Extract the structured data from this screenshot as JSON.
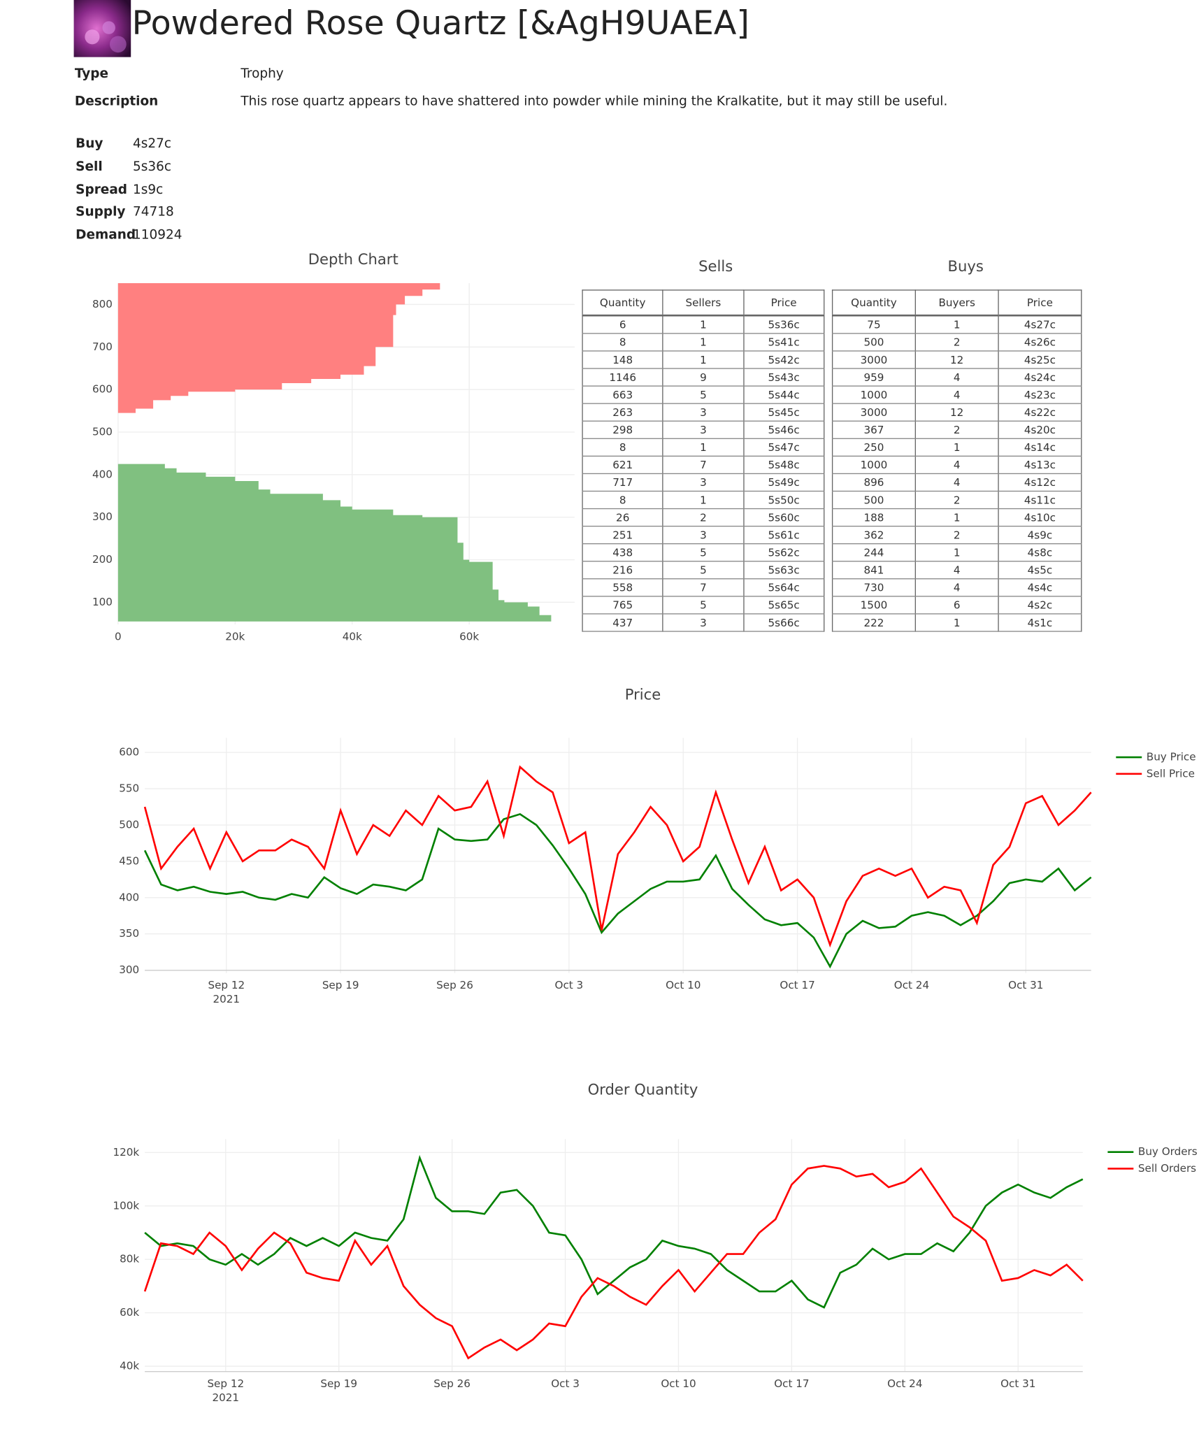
{
  "header": {
    "title": "Powdered Rose Quartz [&AgH9UAEA]"
  },
  "details": [
    {
      "label": "Type",
      "value": "Trophy"
    },
    {
      "label": "Description",
      "value": "This rose quartz appears to have shattered into powder while mining the Kralkatite, but it may still be useful."
    }
  ],
  "stats": [
    {
      "label": "Buy",
      "value": "4s27c"
    },
    {
      "label": "Sell",
      "value": "5s36c"
    },
    {
      "label": "Spread",
      "value": "1s9c"
    },
    {
      "label": "Supply",
      "value": 74718
    },
    {
      "label": "Demand",
      "value": 110924
    }
  ],
  "sells_table": {
    "title": "Sells",
    "columns": [
      "Quantity",
      "Sellers",
      "Price"
    ],
    "rows": [
      [
        6,
        1,
        "5s36c"
      ],
      [
        8,
        1,
        "5s41c"
      ],
      [
        148,
        1,
        "5s42c"
      ],
      [
        1146,
        9,
        "5s43c"
      ],
      [
        663,
        5,
        "5s44c"
      ],
      [
        263,
        3,
        "5s45c"
      ],
      [
        298,
        3,
        "5s46c"
      ],
      [
        8,
        1,
        "5s47c"
      ],
      [
        621,
        7,
        "5s48c"
      ],
      [
        717,
        3,
        "5s49c"
      ],
      [
        8,
        1,
        "5s50c"
      ],
      [
        26,
        2,
        "5s60c"
      ],
      [
        251,
        3,
        "5s61c"
      ],
      [
        438,
        5,
        "5s62c"
      ],
      [
        216,
        5,
        "5s63c"
      ],
      [
        558,
        7,
        "5s64c"
      ],
      [
        765,
        5,
        "5s65c"
      ],
      [
        437,
        3,
        "5s66c"
      ]
    ]
  },
  "buys_table": {
    "title": "Buys",
    "columns": [
      "Quantity",
      "Buyers",
      "Price"
    ],
    "rows": [
      [
        75,
        1,
        "4s27c"
      ],
      [
        500,
        2,
        "4s26c"
      ],
      [
        3000,
        12,
        "4s25c"
      ],
      [
        959,
        4,
        "4s24c"
      ],
      [
        1000,
        4,
        "4s23c"
      ],
      [
        3000,
        12,
        "4s22c"
      ],
      [
        367,
        2,
        "4s20c"
      ],
      [
        250,
        1,
        "4s14c"
      ],
      [
        1000,
        4,
        "4s13c"
      ],
      [
        896,
        4,
        "4s12c"
      ],
      [
        500,
        2,
        "4s11c"
      ],
      [
        188,
        1,
        "4s10c"
      ],
      [
        362,
        2,
        "4s9c"
      ],
      [
        244,
        1,
        "4s8c"
      ],
      [
        841,
        4,
        "4s5c"
      ],
      [
        730,
        4,
        "4s4c"
      ],
      [
        1500,
        6,
        "4s2c"
      ],
      [
        222,
        1,
        "4s1c"
      ]
    ]
  },
  "chart_data": [
    {
      "type": "depth",
      "title": "Depth Chart",
      "xlim": [
        0,
        78000
      ],
      "ylim": [
        48,
        850
      ],
      "xticks": [
        0,
        {
          "value": 20000,
          "label": "20k"
        },
        {
          "value": 40000,
          "label": "40k"
        },
        {
          "value": 60000,
          "label": "60k"
        }
      ],
      "yticks": [
        100,
        200,
        300,
        400,
        500,
        600,
        700,
        800
      ],
      "grid": true,
      "series": [
        {
          "name": "Sells",
          "color": "#ff8080",
          "x": [
            0,
            3000,
            6000,
            9000,
            12000,
            20000,
            28000,
            33000,
            38000,
            42000,
            44000,
            47000,
            47500,
            49000,
            52000,
            55000,
            56500
          ],
          "values": [
            536,
            545,
            555,
            575,
            585,
            595,
            600,
            615,
            625,
            635,
            655,
            700,
            775,
            800,
            820,
            835,
            850
          ]
        },
        {
          "name": "Buys",
          "color": "#80c080",
          "x": [
            0,
            8000,
            10000,
            15000,
            20000,
            24000,
            26000,
            35000,
            38000,
            40000,
            47000,
            52000,
            58000,
            59000,
            60000,
            64000,
            65000,
            66000,
            70000,
            72000,
            74000,
            78000
          ],
          "values": [
            427,
            425,
            415,
            405,
            395,
            385,
            365,
            355,
            340,
            325,
            318,
            305,
            300,
            240,
            200,
            195,
            130,
            105,
            100,
            90,
            70,
            55
          ]
        }
      ]
    },
    {
      "type": "line",
      "title": "Price",
      "xlim": [
        "2021-09-07",
        "2021-11-04"
      ],
      "ylim": [
        296,
        620
      ],
      "yticks": [
        300,
        350,
        400,
        450,
        500,
        550,
        600
      ],
      "xticks": [
        {
          "value": "2021-09-12",
          "label": "Sep 12"
        },
        {
          "value": "2021-09-19",
          "label": "Sep 19"
        },
        {
          "value": "2021-09-26",
          "label": "Sep 26"
        },
        {
          "value": "2021-10-03",
          "label": "Oct 3"
        },
        {
          "value": "2021-10-10",
          "label": "Oct 10"
        },
        {
          "value": "2021-10-17",
          "label": "Oct 17"
        },
        {
          "value": "2021-10-24",
          "label": "Oct 24"
        },
        {
          "value": "2021-10-31",
          "label": "Oct 31"
        }
      ],
      "year_label": "2021",
      "grid": true,
      "legend": "top-right",
      "x": [
        "2021-09-07",
        "2021-09-08",
        "2021-09-09",
        "2021-09-10",
        "2021-09-11",
        "2021-09-12",
        "2021-09-13",
        "2021-09-14",
        "2021-09-15",
        "2021-09-16",
        "2021-09-17",
        "2021-09-18",
        "2021-09-19",
        "2021-09-20",
        "2021-09-21",
        "2021-09-22",
        "2021-09-23",
        "2021-09-24",
        "2021-09-25",
        "2021-09-26",
        "2021-09-27",
        "2021-09-28",
        "2021-09-29",
        "2021-09-30",
        "2021-10-01",
        "2021-10-02",
        "2021-10-03",
        "2021-10-04",
        "2021-10-05",
        "2021-10-06",
        "2021-10-07",
        "2021-10-08",
        "2021-10-09",
        "2021-10-10",
        "2021-10-11",
        "2021-10-12",
        "2021-10-13",
        "2021-10-14",
        "2021-10-15",
        "2021-10-16",
        "2021-10-17",
        "2021-10-18",
        "2021-10-19",
        "2021-10-20",
        "2021-10-21",
        "2021-10-22",
        "2021-10-23",
        "2021-10-24",
        "2021-10-25",
        "2021-10-26",
        "2021-10-27",
        "2021-10-28",
        "2021-10-29",
        "2021-10-30",
        "2021-10-31",
        "2021-11-01",
        "2021-11-02",
        "2021-11-03",
        "2021-11-04"
      ],
      "series": [
        {
          "name": "Buy Price",
          "color": "#008000",
          "values": [
            465,
            418,
            410,
            415,
            408,
            405,
            408,
            400,
            397,
            405,
            400,
            428,
            413,
            405,
            418,
            415,
            410,
            425,
            495,
            480,
            478,
            480,
            508,
            515,
            500,
            472,
            440,
            405,
            352,
            378,
            395,
            412,
            422,
            422,
            425,
            458,
            412,
            390,
            370,
            362,
            365,
            345,
            305,
            350,
            368,
            358,
            360,
            375,
            380,
            375,
            362,
            375,
            395,
            420,
            425,
            422,
            440,
            410,
            428
          ]
        },
        {
          "name": "Sell Price",
          "color": "#ff0000",
          "values": [
            525,
            440,
            470,
            495,
            440,
            490,
            450,
            465,
            465,
            480,
            470,
            440,
            520,
            460,
            500,
            485,
            520,
            500,
            540,
            520,
            525,
            560,
            485,
            580,
            560,
            545,
            475,
            490,
            355,
            460,
            490,
            525,
            500,
            450,
            470,
            545,
            480,
            420,
            470,
            410,
            425,
            400,
            335,
            395,
            430,
            440,
            430,
            440,
            400,
            415,
            410,
            365,
            445,
            470,
            530,
            540,
            500,
            520,
            545
          ]
        }
      ]
    },
    {
      "type": "line",
      "title": "Order Quantity",
      "xlim": [
        "2021-09-07",
        "2021-11-04"
      ],
      "ylim": [
        38000,
        125000
      ],
      "yticks": [
        {
          "value": 40000,
          "label": "40k"
        },
        {
          "value": 60000,
          "label": "60k"
        },
        {
          "value": 80000,
          "label": "80k"
        },
        {
          "value": 100000,
          "label": "100k"
        },
        {
          "value": 120000,
          "label": "120k"
        }
      ],
      "xticks": [
        {
          "value": "2021-09-12",
          "label": "Sep 12"
        },
        {
          "value": "2021-09-19",
          "label": "Sep 19"
        },
        {
          "value": "2021-09-26",
          "label": "Sep 26"
        },
        {
          "value": "2021-10-03",
          "label": "Oct 3"
        },
        {
          "value": "2021-10-10",
          "label": "Oct 10"
        },
        {
          "value": "2021-10-17",
          "label": "Oct 17"
        },
        {
          "value": "2021-10-24",
          "label": "Oct 24"
        },
        {
          "value": "2021-10-31",
          "label": "Oct 31"
        }
      ],
      "year_label": "2021",
      "grid": true,
      "legend": "top-right",
      "x": [
        "2021-09-07",
        "2021-09-08",
        "2021-09-09",
        "2021-09-10",
        "2021-09-11",
        "2021-09-12",
        "2021-09-13",
        "2021-09-14",
        "2021-09-15",
        "2021-09-16",
        "2021-09-17",
        "2021-09-18",
        "2021-09-19",
        "2021-09-20",
        "2021-09-21",
        "2021-09-22",
        "2021-09-23",
        "2021-09-24",
        "2021-09-25",
        "2021-09-26",
        "2021-09-27",
        "2021-09-28",
        "2021-09-29",
        "2021-09-30",
        "2021-10-01",
        "2021-10-02",
        "2021-10-03",
        "2021-10-04",
        "2021-10-05",
        "2021-10-06",
        "2021-10-07",
        "2021-10-08",
        "2021-10-09",
        "2021-10-10",
        "2021-10-11",
        "2021-10-12",
        "2021-10-13",
        "2021-10-14",
        "2021-10-15",
        "2021-10-16",
        "2021-10-17",
        "2021-10-18",
        "2021-10-19",
        "2021-10-20",
        "2021-10-21",
        "2021-10-22",
        "2021-10-23",
        "2021-10-24",
        "2021-10-25",
        "2021-10-26",
        "2021-10-27",
        "2021-10-28",
        "2021-10-29",
        "2021-10-30",
        "2021-10-31",
        "2021-11-01",
        "2021-11-02",
        "2021-11-03",
        "2021-11-04"
      ],
      "series": [
        {
          "name": "Buy Orders",
          "color": "#008000",
          "values": [
            90000,
            85000,
            86000,
            85000,
            80000,
            78000,
            82000,
            78000,
            82000,
            88000,
            85000,
            88000,
            85000,
            90000,
            88000,
            87000,
            95000,
            118000,
            103000,
            98000,
            98000,
            97000,
            105000,
            106000,
            100000,
            90000,
            89000,
            80000,
            67000,
            72000,
            77000,
            80000,
            87000,
            85000,
            84000,
            82000,
            76000,
            72000,
            68000,
            68000,
            72000,
            65000,
            62000,
            75000,
            78000,
            84000,
            80000,
            82000,
            82000,
            86000,
            83000,
            90000,
            100000,
            105000,
            108000,
            105000,
            103000,
            107000,
            110000
          ]
        },
        {
          "name": "Sell Orders",
          "color": "#ff0000",
          "values": [
            68000,
            86000,
            85000,
            82000,
            90000,
            85000,
            76000,
            84000,
            90000,
            86000,
            75000,
            73000,
            72000,
            87000,
            78000,
            85000,
            70000,
            63000,
            58000,
            55000,
            43000,
            47000,
            50000,
            46000,
            50000,
            56000,
            55000,
            66000,
            73000,
            70000,
            66000,
            63000,
            70000,
            76000,
            68000,
            75000,
            82000,
            82000,
            90000,
            95000,
            108000,
            114000,
            115000,
            114000,
            111000,
            112000,
            107000,
            109000,
            114000,
            105000,
            96000,
            92000,
            87000,
            72000,
            73000,
            76000,
            74000,
            78000,
            72000
          ]
        }
      ]
    }
  ]
}
